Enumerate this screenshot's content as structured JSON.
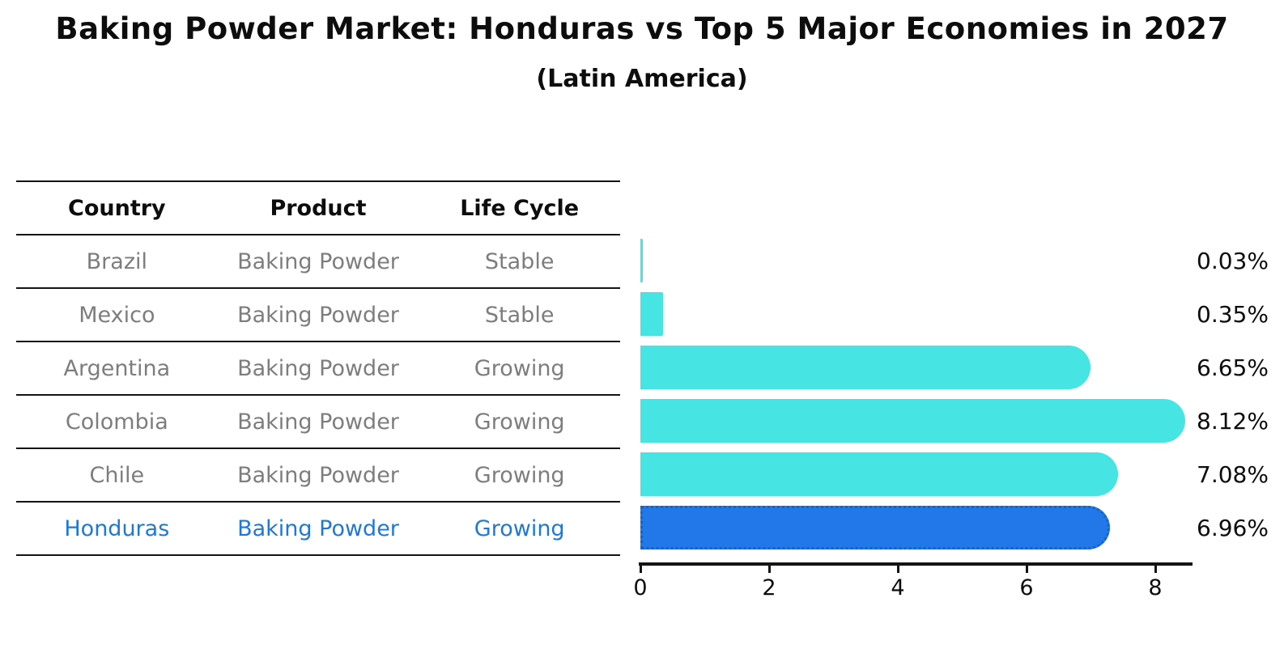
{
  "header": {
    "title": "Baking Powder Market: Honduras vs Top 5 Major Economies in 2027",
    "subtitle": "(Latin America)"
  },
  "table": {
    "headers": [
      "Country",
      "Product",
      "Life Cycle"
    ],
    "rows": [
      {
        "country": "Brazil",
        "product": "Baking Powder",
        "life_cycle": "Stable",
        "highlight": false
      },
      {
        "country": "Mexico",
        "product": "Baking Powder",
        "life_cycle": "Stable",
        "highlight": false
      },
      {
        "country": "Argentina",
        "product": "Baking Powder",
        "life_cycle": "Growing",
        "highlight": false
      },
      {
        "country": "Colombia",
        "product": "Baking Powder",
        "life_cycle": "Growing",
        "highlight": false
      },
      {
        "country": "Chile",
        "product": "Baking Powder",
        "life_cycle": "Growing",
        "highlight": false
      },
      {
        "country": "Honduras",
        "product": "Baking Powder",
        "life_cycle": "Growing",
        "highlight": true
      }
    ]
  },
  "chart_data": {
    "type": "bar",
    "orientation": "horizontal",
    "title": "Baking Powder Market: Honduras vs Top 5 Major Economies in 2027",
    "subtitle": "(Latin America)",
    "categories": [
      "Brazil",
      "Mexico",
      "Argentina",
      "Colombia",
      "Chile",
      "Honduras"
    ],
    "values": [
      0.03,
      0.35,
      6.65,
      8.12,
      7.08,
      6.96
    ],
    "value_labels": [
      "0.03%",
      "0.35%",
      "6.65%",
      "7.08%",
      "6.96%"
    ],
    "value_labels_full": [
      "0.03%",
      "0.35%",
      "6.65%",
      "8.12%",
      "7.08%",
      "6.96%"
    ],
    "xticks": [
      0,
      2,
      4,
      6,
      8
    ],
    "xlim": [
      0,
      8.6
    ],
    "grid": false,
    "legend": false,
    "bar_color": "#47e4e4",
    "highlight_index": 5,
    "highlight_color": "#2278e8",
    "highlight_border_color": "#1463c8",
    "highlight_text_color": "#1e79d6"
  }
}
